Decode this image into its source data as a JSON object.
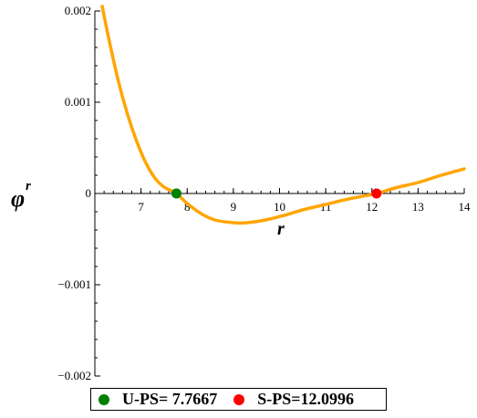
{
  "chart_data": {
    "type": "line",
    "title": "",
    "xlabel": "r",
    "ylabel": {
      "base": "φ",
      "superscript": "r"
    },
    "xlim": [
      6.0,
      14.0
    ],
    "ylim": [
      -0.002,
      0.002
    ],
    "grid": false,
    "legend_placement": "bottom",
    "x_ticks": [
      "7",
      "8",
      "9",
      "10",
      "11",
      "12",
      "13",
      "14"
    ],
    "y_ticks": [
      "0.002",
      "0.001",
      "0",
      "−0.001",
      "−0.002"
    ],
    "x_tick_values": [
      7,
      8,
      9,
      10,
      11,
      12,
      13,
      14
    ],
    "y_tick_values": [
      0.002,
      0.001,
      0,
      -0.001,
      -0.002
    ],
    "series": [
      {
        "color": "#FFA500",
        "x": [
          6.16,
          6.3,
          6.5,
          6.7,
          6.9,
          7.1,
          7.3,
          7.5,
          7.7667,
          8.0,
          8.3,
          8.6,
          9.0,
          9.3,
          9.7,
          10.1,
          10.5,
          11.0,
          11.5,
          12.0996,
          12.5,
          13.0,
          13.5,
          14.0
        ],
        "y": [
          0.00205,
          0.0017,
          0.00125,
          0.00088,
          0.00058,
          0.00034,
          0.00017,
          7e-05,
          0.0,
          -0.00011,
          -0.00022,
          -0.00029,
          -0.00032,
          -0.00032,
          -0.00029,
          -0.00024,
          -0.00018,
          -0.00012,
          -6e-05,
          0.0,
          6e-05,
          0.00012,
          0.0002,
          0.00027
        ]
      }
    ],
    "points": [
      {
        "label": "U-PS= 7.7667",
        "x": 7.7667,
        "y": 0,
        "color": "#008000"
      },
      {
        "label": "S-PS=12.0996",
        "x": 12.0996,
        "y": 0,
        "color": "#FF0000"
      }
    ]
  }
}
